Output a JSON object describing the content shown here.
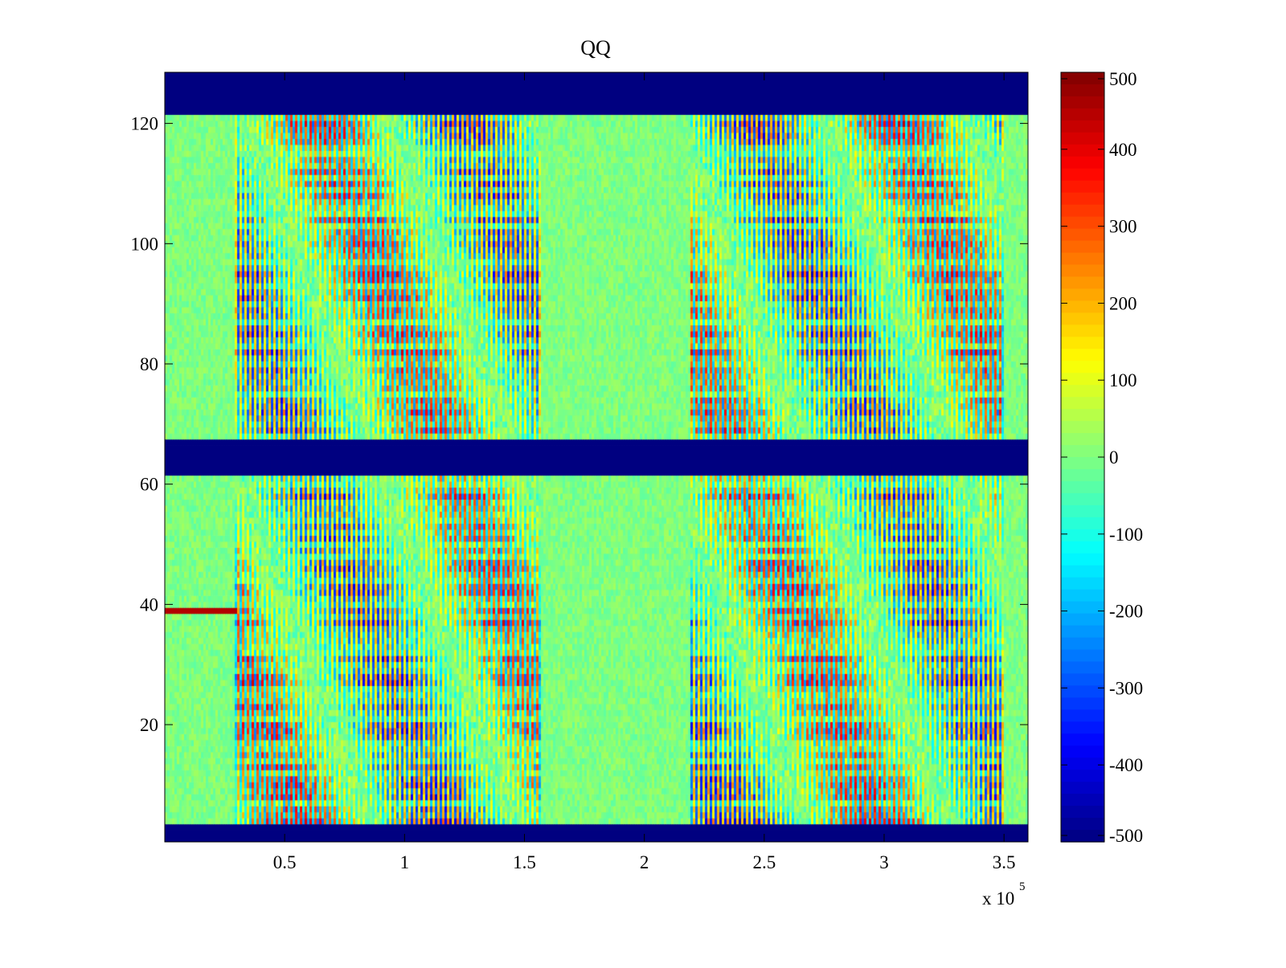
{
  "chart_data": {
    "type": "heatmap",
    "title": "QQ",
    "xlabel": "",
    "ylabel": "",
    "colormap": "jet",
    "x_exponent_label": "x 10",
    "x_exponent_power": "5",
    "x_scale": 100000,
    "xlim": [
      0,
      3.6
    ],
    "ylim": [
      0.5,
      128.5
    ],
    "x_ticks": [
      0.5,
      1,
      1.5,
      2,
      2.5,
      3,
      3.5
    ],
    "x_tick_labels": [
      "0.5",
      "1",
      "1.5",
      "2",
      "2.5",
      "3",
      "3.5"
    ],
    "y_ticks": [
      20,
      40,
      60,
      80,
      100,
      120
    ],
    "y_tick_labels": [
      "20",
      "40",
      "60",
      "80",
      "100",
      "120"
    ],
    "clim": [
      -500,
      500
    ],
    "colorbar_ticks": [
      500,
      400,
      300,
      200,
      100,
      0,
      -100,
      -200,
      -300,
      -400,
      -500
    ],
    "colorbar_tick_labels": [
      "500",
      "400",
      "300",
      "200",
      "100",
      "0",
      "-100",
      "-200",
      "-300",
      "-400",
      "-500"
    ],
    "constant_row_bands": [
      {
        "y_from": 0.5,
        "y_to": 3.5,
        "value": -500
      },
      {
        "y_from": 61.5,
        "y_to": 67.5,
        "value": -500
      },
      {
        "y_from": 121.5,
        "y_to": 128.5,
        "value": -500
      }
    ],
    "active_x_ranges": [
      [
        0.29,
        1.57
      ],
      [
        2.19,
        3.5
      ]
    ],
    "quiet_value": 0,
    "highlight_row": {
      "y": 39,
      "x_from": 0,
      "x_to": 0.3,
      "value": 450
    }
  }
}
